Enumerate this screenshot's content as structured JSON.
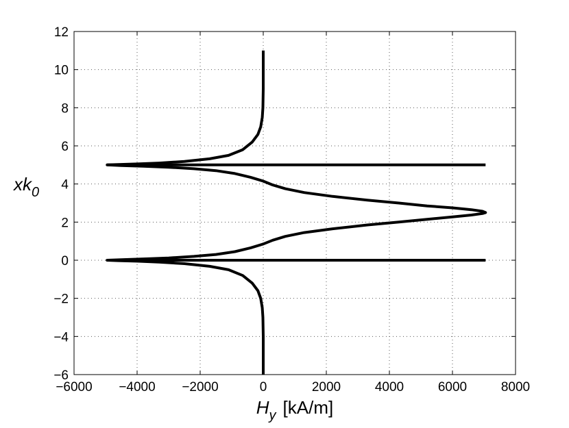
{
  "chart_data": {
    "type": "line",
    "title": "",
    "xlabel": {
      "symbol": "H",
      "subscript": "y",
      "unit": "[kA/m]"
    },
    "ylabel": {
      "symbol": "xk",
      "subscript": "0"
    },
    "xlim": [
      -6000,
      8000
    ],
    "ylim": [
      -6,
      12
    ],
    "xticks": [
      -6000,
      -4000,
      -2000,
      0,
      2000,
      4000,
      6000,
      8000
    ],
    "yticks": [
      -6,
      -4,
      -2,
      0,
      2,
      4,
      6,
      8,
      10,
      12
    ],
    "xtick_labels": [
      "−6000",
      "−4000",
      "−2000",
      "0",
      "2000",
      "4000",
      "6000",
      "8000"
    ],
    "ytick_labels": [
      "−6",
      "−4",
      "−2",
      "0",
      "2",
      "4",
      "6",
      "8",
      "10",
      "12"
    ],
    "grid": true,
    "line_color": "#000000",
    "series": [
      {
        "points": [
          [
            0,
            -6
          ],
          [
            0,
            -4
          ],
          [
            -10,
            -3
          ],
          [
            -30,
            -2.5
          ],
          [
            -80,
            -2
          ],
          [
            -170,
            -1.6
          ],
          [
            -350,
            -1.2
          ],
          [
            -650,
            -0.8
          ],
          [
            -1100,
            -0.5
          ],
          [
            -1700,
            -0.32
          ],
          [
            -2500,
            -0.18
          ],
          [
            -3300,
            -0.1
          ],
          [
            -4000,
            -0.05
          ],
          [
            -4600,
            -0.02
          ],
          [
            -4950,
            0
          ],
          [
            -4500,
            0.03
          ],
          [
            -3800,
            0.07
          ],
          [
            -3000,
            0.12
          ],
          [
            -2200,
            0.2
          ],
          [
            -1500,
            0.3
          ],
          [
            -900,
            0.45
          ],
          [
            -400,
            0.65
          ],
          [
            0,
            0.85
          ],
          [
            300,
            1.05
          ],
          [
            700,
            1.25
          ],
          [
            1300,
            1.45
          ],
          [
            2200,
            1.65
          ],
          [
            3300,
            1.85
          ],
          [
            4300,
            2.0
          ],
          [
            5200,
            2.15
          ],
          [
            6000,
            2.27
          ],
          [
            6600,
            2.37
          ],
          [
            6950,
            2.45
          ],
          [
            7050,
            2.5
          ],
          [
            6950,
            2.57
          ],
          [
            6600,
            2.65
          ],
          [
            6000,
            2.75
          ],
          [
            5200,
            2.85
          ],
          [
            4300,
            3.0
          ],
          [
            3300,
            3.15
          ],
          [
            2200,
            3.35
          ],
          [
            1300,
            3.55
          ],
          [
            700,
            3.75
          ],
          [
            300,
            3.95
          ],
          [
            0,
            4.15
          ],
          [
            -400,
            4.35
          ],
          [
            -900,
            4.55
          ],
          [
            -1500,
            4.7
          ],
          [
            -2200,
            4.8
          ],
          [
            -3000,
            4.88
          ],
          [
            -3800,
            4.93
          ],
          [
            -4500,
            4.97
          ],
          [
            -4950,
            5
          ],
          [
            -4600,
            5.02
          ],
          [
            -4000,
            5.05
          ],
          [
            -3300,
            5.1
          ],
          [
            -2500,
            5.18
          ],
          [
            -1700,
            5.32
          ],
          [
            -1100,
            5.5
          ],
          [
            -650,
            5.8
          ],
          [
            -350,
            6.2
          ],
          [
            -170,
            6.6
          ],
          [
            -80,
            7
          ],
          [
            -30,
            7.5
          ],
          [
            -10,
            8
          ],
          [
            0,
            9
          ],
          [
            0,
            11
          ]
        ]
      },
      {
        "points": [
          [
            -4950,
            0
          ],
          [
            7050,
            0
          ]
        ]
      },
      {
        "points": [
          [
            -4950,
            5
          ],
          [
            7050,
            5
          ]
        ]
      }
    ]
  }
}
